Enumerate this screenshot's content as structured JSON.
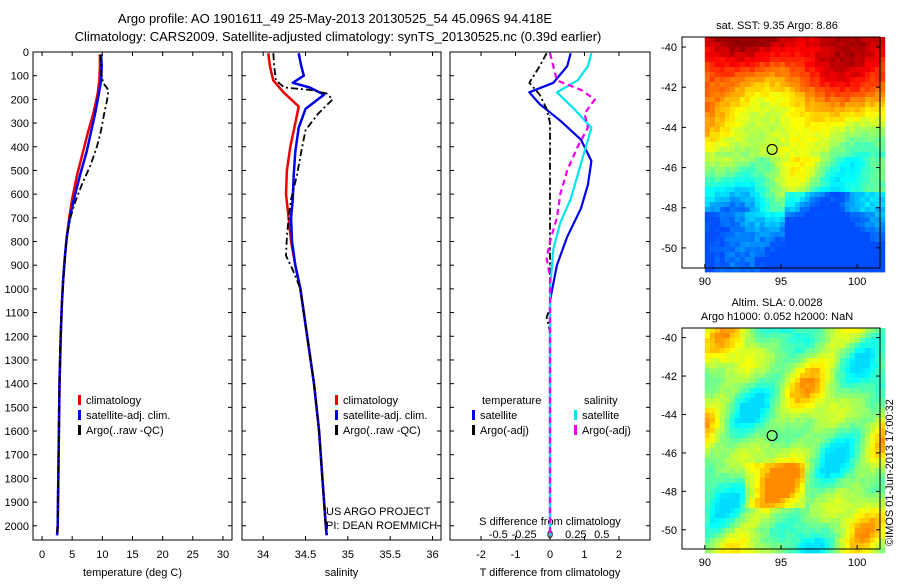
{
  "header": {
    "line1": "Argo profile: AO 1901611_49 25-May-2013 20130525_54 45.096S 94.418E",
    "line2": "Climatology: CARS2009. Satellite-adjusted climatology: synTS_20130525.nc (0.39d earlier)"
  },
  "colors": {
    "climatology": "#ee0000",
    "satellite": "#0000ee",
    "argo": "#000000",
    "satellite_s": "#00e5ee",
    "argo_s": "#ee00ee"
  },
  "depth_ticks": [
    0,
    100,
    200,
    300,
    400,
    500,
    600,
    700,
    800,
    900,
    1000,
    1100,
    1200,
    1300,
    1400,
    1500,
    1600,
    1700,
    1800,
    1900,
    2000
  ],
  "chart_data": [
    {
      "type": "line",
      "id": "temperature",
      "xlabel": "temperature (deg C)",
      "xlim": [
        -1.5,
        31.5
      ],
      "ylim": [
        2060,
        0
      ],
      "xticks": [
        0,
        5,
        10,
        15,
        20,
        25,
        30
      ],
      "xtick_labels": [
        "0",
        "5",
        "10",
        "15",
        "20",
        "25",
        "30"
      ],
      "legend": [
        {
          "label": "climatology",
          "color": "#ee0000",
          "dash": "solid"
        },
        {
          "label": "satellite-adj. clim.",
          "color": "#0000ee",
          "dash": "solid"
        },
        {
          "label": "Argo(..raw -QC)",
          "color": "#000000",
          "dash": "dashdot"
        }
      ],
      "series": [
        {
          "name": "climatology",
          "color": "#ee0000",
          "dash": "solid",
          "width": 2.5,
          "points": [
            [
              9.6,
              10
            ],
            [
              9.6,
              60
            ],
            [
              9.5,
              120
            ],
            [
              9.2,
              180
            ],
            [
              8.5,
              260
            ],
            [
              7.6,
              340
            ],
            [
              6.8,
              420
            ],
            [
              5.8,
              520
            ],
            [
              5.0,
              620
            ],
            [
              4.5,
              700
            ],
            [
              4.1,
              780
            ],
            [
              3.8,
              860
            ],
            [
              3.5,
              960
            ],
            [
              3.3,
              1060
            ],
            [
              3.1,
              1200
            ],
            [
              2.9,
              1400
            ],
            [
              2.8,
              1600
            ],
            [
              2.7,
              1800
            ],
            [
              2.6,
              2000
            ],
            [
              2.5,
              2040
            ]
          ]
        },
        {
          "name": "satellite-adj. clim.",
          "color": "#0000ee",
          "dash": "solid",
          "width": 2.5,
          "points": [
            [
              9.8,
              10
            ],
            [
              9.9,
              60
            ],
            [
              9.8,
              120
            ],
            [
              9.4,
              180
            ],
            [
              8.8,
              260
            ],
            [
              8.1,
              340
            ],
            [
              7.4,
              420
            ],
            [
              6.3,
              520
            ],
            [
              5.3,
              620
            ],
            [
              4.6,
              700
            ],
            [
              4.1,
              780
            ],
            [
              3.8,
              860
            ],
            [
              3.5,
              960
            ],
            [
              3.3,
              1060
            ],
            [
              3.1,
              1200
            ],
            [
              2.9,
              1400
            ],
            [
              2.8,
              1600
            ],
            [
              2.7,
              1800
            ],
            [
              2.6,
              2000
            ],
            [
              2.5,
              2040
            ]
          ]
        },
        {
          "name": "Argo(..raw -QC)",
          "color": "#000000",
          "dash": "dashdot",
          "width": 1.8,
          "points": [
            [
              9.7,
              10
            ],
            [
              9.8,
              80
            ],
            [
              10.1,
              130
            ],
            [
              11.0,
              160
            ],
            [
              10.8,
              200
            ],
            [
              10.3,
              260
            ],
            [
              9.8,
              330
            ],
            [
              9.1,
              400
            ],
            [
              8.0,
              480
            ],
            [
              6.6,
              560
            ],
            [
              5.4,
              640
            ],
            [
              4.7,
              700
            ],
            [
              4.1,
              780
            ],
            [
              3.8,
              860
            ],
            [
              3.5,
              960
            ],
            [
              3.3,
              1060
            ],
            [
              3.1,
              1200
            ],
            [
              2.9,
              1400
            ],
            [
              2.8,
              1600
            ],
            [
              2.7,
              1800
            ],
            [
              2.6,
              2000
            ],
            [
              2.5,
              2030
            ]
          ]
        }
      ]
    },
    {
      "type": "line",
      "id": "salinity",
      "xlabel": "salinity",
      "xlim": [
        33.75,
        36.1
      ],
      "ylim": [
        2060,
        0
      ],
      "xticks": [
        34,
        34.5,
        35,
        35.5,
        36
      ],
      "xtick_labels": [
        "34",
        "34.5",
        "35",
        "35.5",
        "36"
      ],
      "legend": [
        {
          "label": "climatology",
          "color": "#ee0000",
          "dash": "solid"
        },
        {
          "label": "satellite-adj. clim.",
          "color": "#0000ee",
          "dash": "solid"
        },
        {
          "label": "Argo(..raw -QC)",
          "color": "#000000",
          "dash": "dashdot"
        }
      ],
      "annotation": [
        "US ARGO PROJECT",
        "PI: DEAN ROEMMICH"
      ],
      "series": [
        {
          "name": "climatology",
          "color": "#ee0000",
          "dash": "solid",
          "width": 2.5,
          "points": [
            [
              34.06,
              5
            ],
            [
              34.08,
              60
            ],
            [
              34.12,
              120
            ],
            [
              34.24,
              170
            ],
            [
              34.42,
              230
            ],
            [
              34.38,
              300
            ],
            [
              34.32,
              400
            ],
            [
              34.28,
              500
            ],
            [
              34.27,
              600
            ],
            [
              34.3,
              700
            ],
            [
              34.33,
              800
            ],
            [
              34.38,
              900
            ],
            [
              34.44,
              1000
            ],
            [
              34.52,
              1200
            ],
            [
              34.6,
              1400
            ],
            [
              34.66,
              1600
            ],
            [
              34.7,
              1800
            ],
            [
              34.74,
              2000
            ],
            [
              34.75,
              2040
            ]
          ]
        },
        {
          "name": "satellite-adj. clim.",
          "color": "#0000ee",
          "dash": "solid",
          "width": 2.5,
          "points": [
            [
              34.42,
              5
            ],
            [
              34.45,
              60
            ],
            [
              34.48,
              100
            ],
            [
              34.35,
              130
            ],
            [
              34.55,
              150
            ],
            [
              34.72,
              180
            ],
            [
              34.5,
              240
            ],
            [
              34.42,
              320
            ],
            [
              34.38,
              420
            ],
            [
              34.36,
              520
            ],
            [
              34.35,
              620
            ],
            [
              34.33,
              700
            ],
            [
              34.34,
              800
            ],
            [
              34.38,
              900
            ],
            [
              34.44,
              1000
            ],
            [
              34.52,
              1200
            ],
            [
              34.6,
              1400
            ],
            [
              34.66,
              1600
            ],
            [
              34.7,
              1800
            ],
            [
              34.74,
              2000
            ],
            [
              34.75,
              2040
            ]
          ]
        },
        {
          "name": "Argo(..raw -QC)",
          "color": "#000000",
          "dash": "dashdot",
          "width": 1.8,
          "points": [
            [
              34.12,
              5
            ],
            [
              34.13,
              60
            ],
            [
              34.15,
              120
            ],
            [
              34.25,
              150
            ],
            [
              34.55,
              160
            ],
            [
              34.75,
              175
            ],
            [
              34.82,
              200
            ],
            [
              34.65,
              260
            ],
            [
              34.5,
              330
            ],
            [
              34.45,
              420
            ],
            [
              34.4,
              520
            ],
            [
              34.33,
              620
            ],
            [
              34.3,
              700
            ],
            [
              34.28,
              780
            ],
            [
              34.27,
              860
            ],
            [
              34.35,
              920
            ],
            [
              34.44,
              1000
            ],
            [
              34.52,
              1200
            ],
            [
              34.6,
              1400
            ],
            [
              34.66,
              1600
            ],
            [
              34.7,
              1800
            ],
            [
              34.74,
              2000
            ],
            [
              34.75,
              2030
            ]
          ]
        }
      ]
    },
    {
      "type": "line",
      "id": "difference",
      "xlabel": "T difference from climatology",
      "top_xlabel": "S difference from climatology",
      "xlim": [
        -2.9,
        2.9
      ],
      "ylim": [
        2060,
        0
      ],
      "xticks": [
        -2,
        -1,
        0,
        1,
        2
      ],
      "xtick_labels": [
        "-2",
        "-1",
        "0",
        "1",
        "2"
      ],
      "top_ticks": [
        -1.5,
        -0.75,
        0,
        0.75,
        1.5
      ],
      "top_tick_labels": [
        "-0.5",
        "-0.25",
        "0",
        "0.25",
        "0.5"
      ],
      "legend_temperature_title": "temperature",
      "legend_salinity_title": "salinity",
      "legend": [
        {
          "label": "satellite",
          "color": "#0000ee",
          "dash": "solid",
          "group": "temperature"
        },
        {
          "label": "Argo(-adj)",
          "color": "#000000",
          "dash": "dashdot",
          "group": "temperature"
        },
        {
          "label": "satellite",
          "color": "#00e5ee",
          "dash": "solid",
          "group": "salinity"
        },
        {
          "label": "Argo(-adj)",
          "color": "#ee00ee",
          "dash": "dashed",
          "group": "salinity"
        }
      ],
      "series": [
        {
          "name": "temperature satellite",
          "color": "#0000ee",
          "dash": "solid",
          "width": 2.2,
          "points": [
            [
              0.6,
              5
            ],
            [
              0.5,
              60
            ],
            [
              0.1,
              130
            ],
            [
              -0.6,
              170
            ],
            [
              -0.3,
              220
            ],
            [
              0.3,
              290
            ],
            [
              0.9,
              370
            ],
            [
              1.2,
              460
            ],
            [
              1.1,
              560
            ],
            [
              0.9,
              660
            ],
            [
              0.5,
              780
            ],
            [
              0.2,
              900
            ],
            [
              0,
              1050
            ],
            [
              0,
              1500
            ],
            [
              0,
              2040
            ]
          ]
        },
        {
          "name": "temperature Argo(-adj)",
          "color": "#000000",
          "dash": "dashdot",
          "width": 1.8,
          "points": [
            [
              -0.1,
              5
            ],
            [
              -0.3,
              60
            ],
            [
              -0.6,
              130
            ],
            [
              -0.3,
              180
            ],
            [
              -0.1,
              240
            ],
            [
              0,
              300
            ],
            [
              0,
              1080
            ],
            [
              -0.1,
              1120
            ],
            [
              0,
              1180
            ],
            [
              0,
              2040
            ]
          ]
        },
        {
          "name": "salinity satellite",
          "color": "#00e5ee",
          "dash": "solid",
          "width": 2.2,
          "points": [
            [
              1.2,
              5
            ],
            [
              1.1,
              60
            ],
            [
              0.8,
              120
            ],
            [
              0.2,
              170
            ],
            [
              0.7,
              240
            ],
            [
              1.2,
              320
            ],
            [
              1.0,
              420
            ],
            [
              0.8,
              520
            ],
            [
              0.6,
              620
            ],
            [
              0.3,
              720
            ],
            [
              0.1,
              830
            ],
            [
              0,
              1000
            ],
            [
              0,
              2040
            ]
          ]
        },
        {
          "name": "salinity Argo(-adj)",
          "color": "#ee00ee",
          "dash": "dashed",
          "width": 2.2,
          "points": [
            [
              0.0,
              5
            ],
            [
              0.2,
              120
            ],
            [
              0.9,
              160
            ],
            [
              1.3,
              200
            ],
            [
              1.0,
              260
            ],
            [
              1.1,
              320
            ],
            [
              0.8,
              400
            ],
            [
              0.5,
              500
            ],
            [
              0.3,
              600
            ],
            [
              0.2,
              700
            ],
            [
              0,
              800
            ],
            [
              -0.1,
              870
            ],
            [
              0,
              950
            ],
            [
              0,
              2040
            ]
          ]
        }
      ]
    },
    {
      "type": "heatmap",
      "id": "sst_map",
      "title": "sat. SST: 9.35 Argo: 8.86",
      "xlim": [
        88.5,
        101.5
      ],
      "ylim": [
        -51,
        -39.5
      ],
      "xticks": [
        90,
        95,
        100
      ],
      "xtick_labels": [
        "90",
        "95",
        "100"
      ],
      "yticks": [
        -40,
        -42,
        -44,
        -46,
        -48,
        -50
      ],
      "ytick_labels": [
        "-40",
        "-42",
        "-44",
        "-46",
        "-48",
        "-50"
      ],
      "marker": {
        "lon": 94.418,
        "lat": -45.096
      },
      "data_extent_lon": [
        90,
        101.5
      ]
    },
    {
      "type": "heatmap",
      "id": "sla_map",
      "title": "Altim. SLA: 0.0028",
      "subtitle": "Argo h1000: 0.052 h2000: NaN",
      "xlim": [
        88.5,
        101.5
      ],
      "ylim": [
        -51,
        -39.5
      ],
      "xticks": [
        90,
        95,
        100
      ],
      "xtick_labels": [
        "90",
        "95",
        "100"
      ],
      "yticks": [
        -40,
        -42,
        -44,
        -46,
        -48,
        -50
      ],
      "ytick_labels": [
        "-40",
        "-42",
        "-44",
        "-46",
        "-48",
        "-50"
      ],
      "marker": {
        "lon": 94.418,
        "lat": -45.096
      },
      "data_extent_lon": [
        90,
        101.5
      ]
    }
  ],
  "side_label": "©IMOS 01-Jun-2013 17:00:32"
}
